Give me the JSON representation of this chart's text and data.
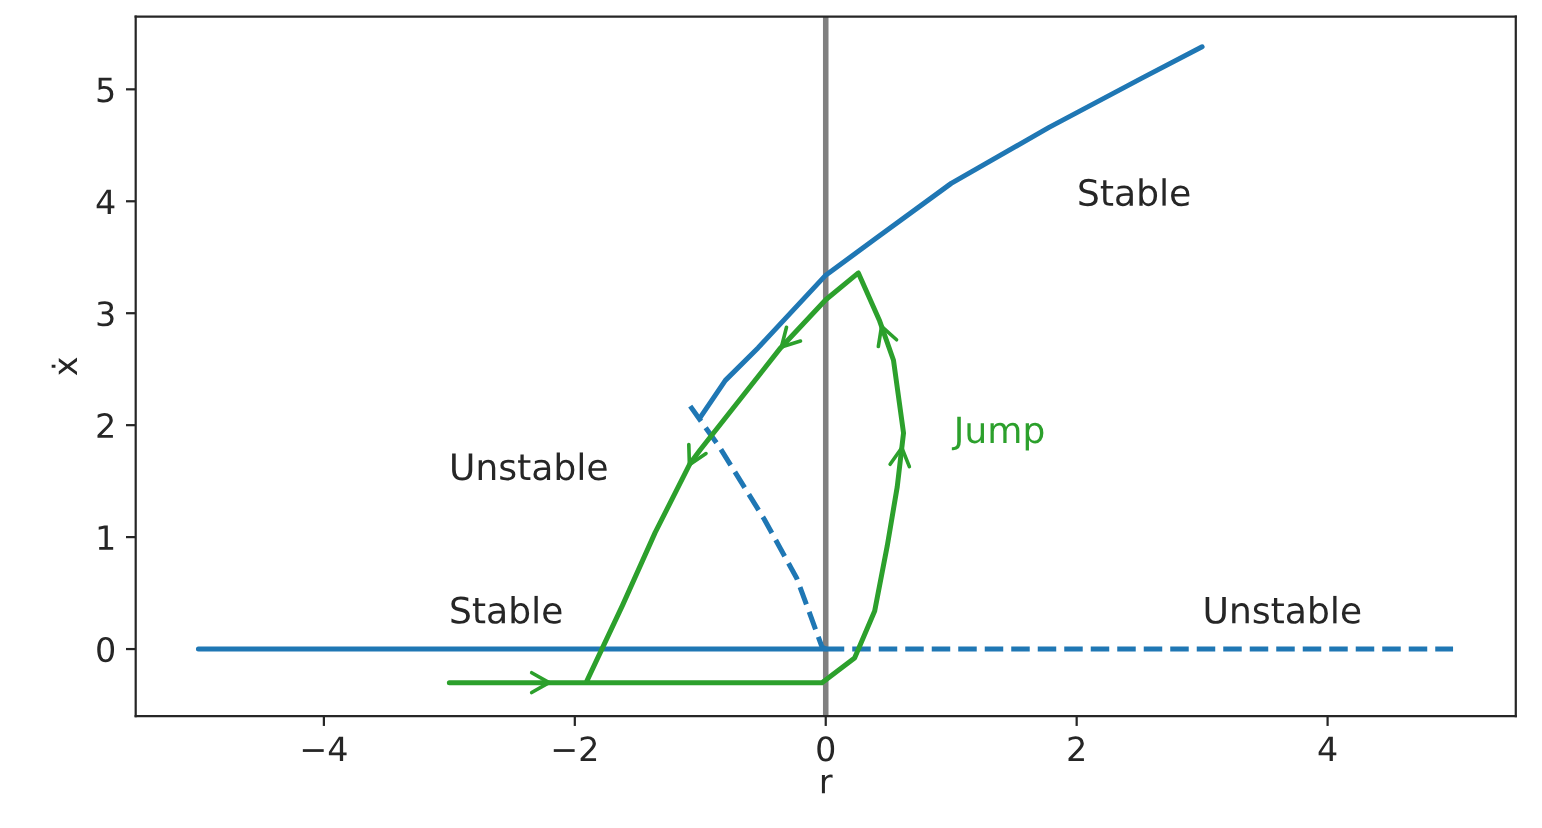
{
  "chart_data": {
    "type": "line",
    "xlabel": "r",
    "ylabel": "ẋ",
    "xlim": [
      -5.5,
      5.5
    ],
    "ylim": [
      -0.6,
      5.65
    ],
    "xticks": [
      {
        "value": -4,
        "label": "−4"
      },
      {
        "value": -2,
        "label": "−2"
      },
      0,
      2,
      4
    ],
    "yticks": [
      0,
      1,
      2,
      3,
      4,
      5
    ],
    "grid": false,
    "series": [
      {
        "color": "#1f77b4",
        "line_style": "solid",
        "x": [
          -1.0,
          -0.8,
          -0.54,
          0,
          0.39,
          1.0,
          1.78,
          2.52,
          3.0
        ],
        "values": [
          2.07,
          2.4,
          2.69,
          3.34,
          3.66,
          4.16,
          4.66,
          5.1,
          5.38
        ]
      },
      {
        "color": "#1f77b4",
        "line_style": "dashed",
        "x": [
          -1.08,
          -0.85,
          -0.49,
          -0.23,
          -0.03,
          0
        ],
        "values": [
          2.17,
          1.81,
          1.16,
          0.63,
          0.02,
          0
        ]
      },
      {
        "color": "#1f77b4",
        "line_style": "solid",
        "x": [
          -5,
          0
        ],
        "values": [
          0,
          0
        ]
      },
      {
        "color": "#1f77b4",
        "line_style": "dashed",
        "x": [
          0,
          5
        ],
        "values": [
          0,
          0
        ]
      },
      {
        "name": "Jump",
        "color": "#2ca02c",
        "line_style": "solid",
        "x": [
          -3,
          -1.91,
          -0.03,
          0.23,
          0.39,
          0.49,
          0.57,
          0.62,
          0.54,
          0.43,
          0.26,
          0,
          -0.36,
          -1.0,
          -1.08,
          -1.36,
          -1.62,
          -1.91
        ],
        "values": [
          -0.3,
          -0.3,
          -0.3,
          -0.08,
          0.34,
          0.92,
          1.45,
          1.93,
          2.58,
          2.93,
          3.36,
          3.12,
          2.69,
          1.78,
          1.66,
          1.04,
          0.39,
          -0.3
        ]
      }
    ],
    "ref_lines": [
      {
        "axis": "x",
        "value": 0,
        "color": "#808080"
      }
    ],
    "annotations": [
      "Stable",
      "Unstable",
      "Stable",
      "Unstable"
    ]
  }
}
